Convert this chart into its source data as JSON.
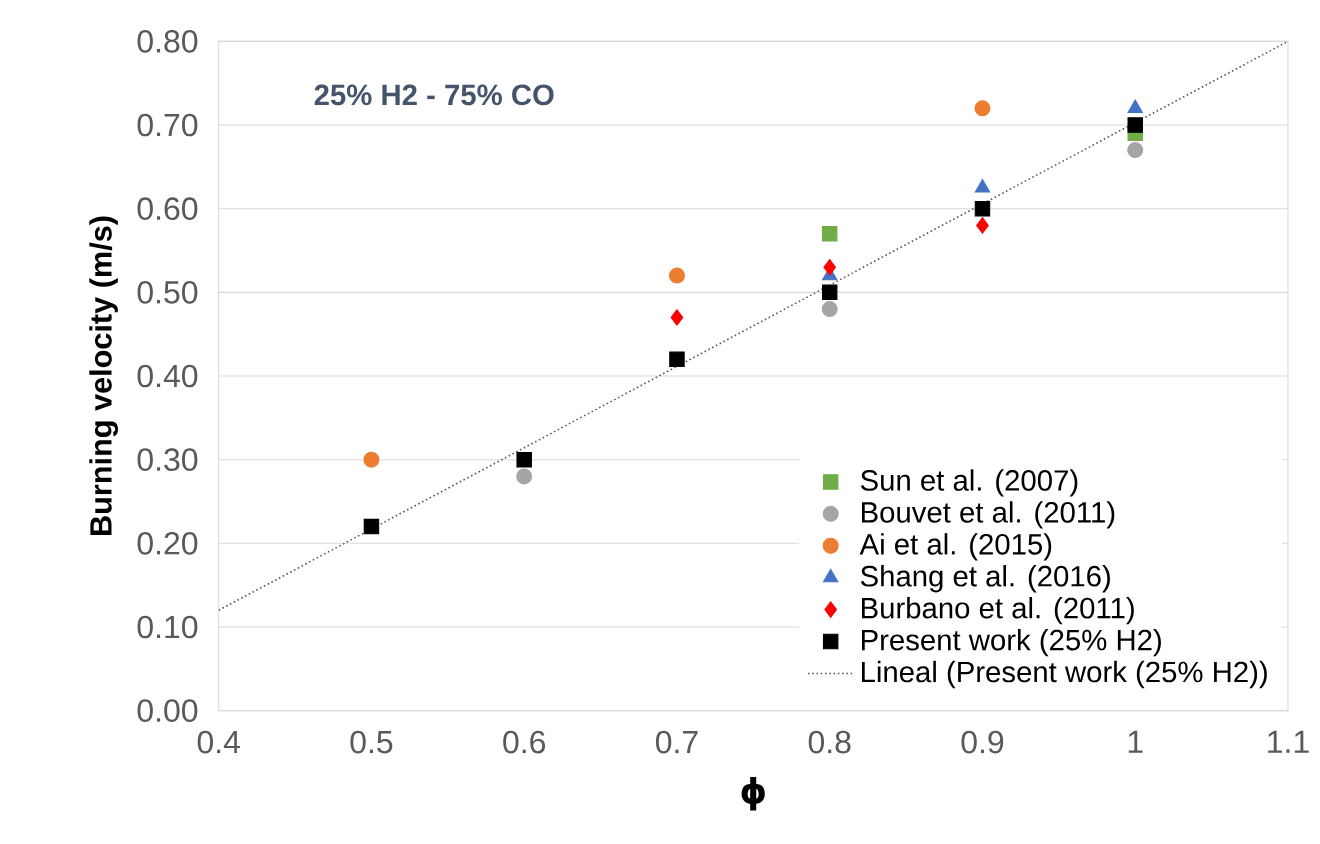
{
  "chart_data": {
    "type": "scatter",
    "xlabel": "ϕ",
    "ylabel": "Burning velocity  (m/s)",
    "annotations": [
      "25% H2 - 75% CO"
    ],
    "xlim": [
      0.4,
      1.1
    ],
    "xticks": [
      0.4,
      0.5,
      0.6,
      0.7,
      0.8,
      0.9,
      1,
      1.1
    ],
    "ylim": [
      0,
      0.8
    ],
    "yticks": [
      {
        "value": 0,
        "label": "0.00"
      },
      {
        "value": 0.1,
        "label": "0.10"
      },
      {
        "value": 0.2,
        "label": "0.20"
      },
      {
        "value": 0.3,
        "label": "0.30"
      },
      {
        "value": 0.4,
        "label": "0.40"
      },
      {
        "value": 0.5,
        "label": "0.50"
      },
      {
        "value": 0.6,
        "label": "0.60"
      },
      {
        "value": 0.7,
        "label": "0.70"
      },
      {
        "value": 0.8,
        "label": "0.80"
      }
    ],
    "grid": "y",
    "legend": "bottom right",
    "series": [
      {
        "name": "Sun et al. (2007)",
        "color": "#70ad47",
        "marker": "square",
        "x": [
          0.8,
          1.0
        ],
        "values": [
          0.57,
          0.69
        ]
      },
      {
        "name": "Bouvet et al. (2011)",
        "color": "#a5a5a5",
        "marker": "circle",
        "x": [
          0.6,
          0.8,
          1.0
        ],
        "values": [
          0.28,
          0.48,
          0.67
        ]
      },
      {
        "name": "Ai et al. (2015)",
        "color": "#ed7d31",
        "marker": "circle",
        "x": [
          0.5,
          0.7,
          0.9
        ],
        "values": [
          0.3,
          0.52,
          0.72
        ]
      },
      {
        "name": "Shang et al. (2016)",
        "color": "#4472c4",
        "marker": "triangle",
        "x": [
          0.8,
          0.9,
          1.0
        ],
        "values": [
          0.52,
          0.625,
          0.72
        ]
      },
      {
        "name": "Burbano et al. (2011)",
        "color": "#ff0000",
        "marker": "diamond",
        "x": [
          0.7,
          0.8,
          0.9
        ],
        "values": [
          0.47,
          0.53,
          0.58
        ]
      },
      {
        "name": "Present work (25% H2)",
        "color": "#000000",
        "marker": "square",
        "x": [
          0.5,
          0.6,
          0.7,
          0.8,
          0.9,
          1.0
        ],
        "values": [
          0.22,
          0.3,
          0.42,
          0.5,
          0.6,
          0.7
        ]
      },
      {
        "name": "Lineal (Present work (25% H2))",
        "type": "line",
        "color": "#595959",
        "marker": "none",
        "line_style": "dotted",
        "x": [
          0.4,
          1.1
        ],
        "values": [
          0.12,
          0.8
        ]
      }
    ]
  }
}
